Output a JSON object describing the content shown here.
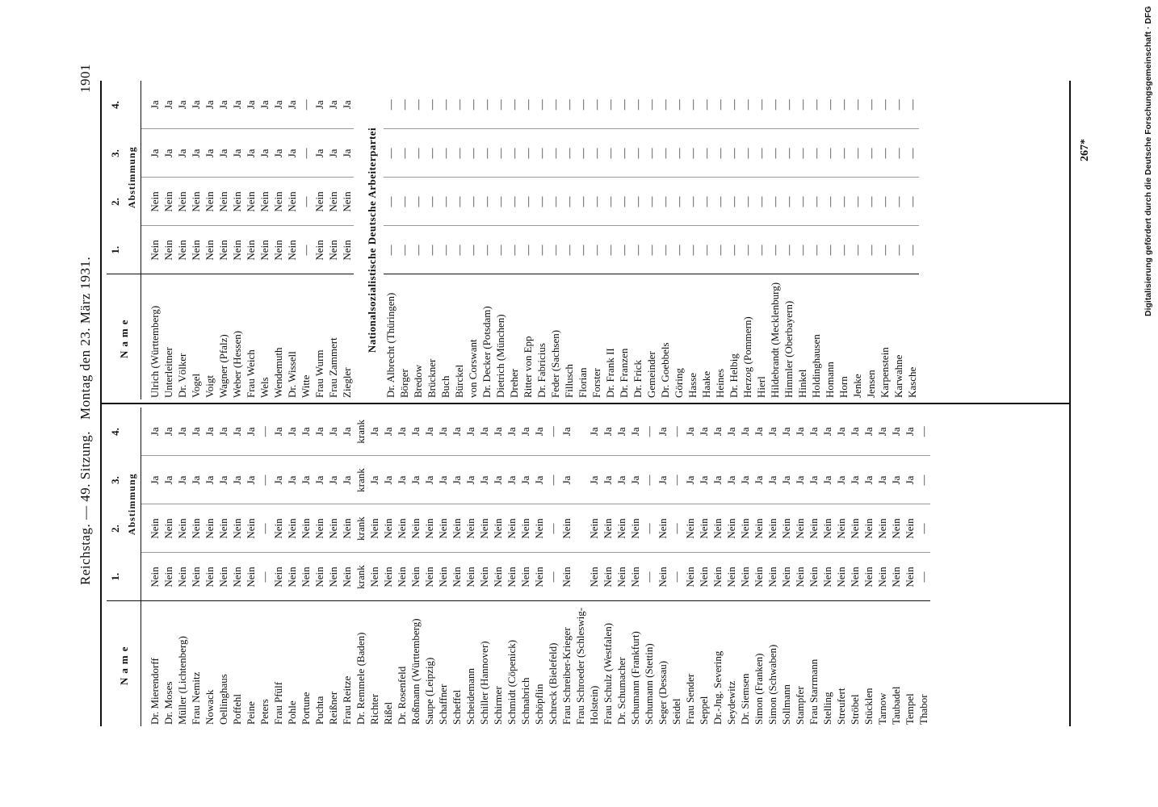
{
  "header": {
    "left": "Reichstag. — 49. Sitzung.",
    "center": "Montag den 23. März 1931.",
    "page_number": "1901"
  },
  "columns": {
    "name": "Name",
    "numbers": [
      "1.",
      "2.",
      "3.",
      "4."
    ],
    "group": "Abstimmung"
  },
  "left_table": {
    "rows": [
      [
        "Dr. Mierendorff",
        "Nein",
        "Nein",
        "Ja",
        "Ja"
      ],
      [
        "Dr. Moses",
        "Nein",
        "Nein",
        "Ja",
        "Ja"
      ],
      [
        "Müller (Lichtenberg)",
        "Nein",
        "Nein",
        "Ja",
        "Ja"
      ],
      [
        "Frau Nemitz",
        "Nein",
        "Nein",
        "Ja",
        "Ja"
      ],
      [
        "Nowack",
        "Nein",
        "Nein",
        "Ja",
        "Ja"
      ],
      [
        "Oellinghaus",
        "Nein",
        "Nein",
        "Ja",
        "Ja"
      ],
      [
        "Poffehl",
        "Nein",
        "Nein",
        "Ja",
        "Ja"
      ],
      [
        "Peine",
        "Nein",
        "Nein",
        "Ja",
        "Ja"
      ],
      [
        "Peters",
        "—",
        "—",
        "—",
        "—"
      ],
      [
        "Frau Pfülf",
        "Nein",
        "Nein",
        "Ja",
        "Ja"
      ],
      [
        "Pohle",
        "Nein",
        "Nein",
        "Ja",
        "Ja"
      ],
      [
        "Portune",
        "Nein",
        "Nein",
        "Ja",
        "Ja"
      ],
      [
        "Puchta",
        "Nein",
        "Nein",
        "Ja",
        "Ja"
      ],
      [
        "Reißner",
        "Nein",
        "Nein",
        "Ja",
        "Ja"
      ],
      [
        "Frau Reitze",
        "Nein",
        "Nein",
        "Ja",
        "Ja"
      ],
      [
        "Dr. Remmele (Baden)",
        "krank",
        "krank",
        "krank",
        "krank"
      ],
      [
        "Richter",
        "Nein",
        "Nein",
        "Ja",
        "Ja"
      ],
      [
        "Rißel",
        "Nein",
        "Nein",
        "Ja",
        "Ja"
      ],
      [
        "Dr. Rosenfeld",
        "Nein",
        "Nein",
        "Ja",
        "Ja"
      ],
      [
        "Roßmann (Württemberg)",
        "Nein",
        "Nein",
        "Ja",
        "Ja"
      ],
      [
        "Saupe (Leipzig)",
        "Nein",
        "Nein",
        "Ja",
        "Ja"
      ],
      [
        "Schaffner",
        "Nein",
        "Nein",
        "Ja",
        "Ja"
      ],
      [
        "Scheffel",
        "Nein",
        "Nein",
        "Ja",
        "Ja"
      ],
      [
        "Scheidemann",
        "Nein",
        "Nein",
        "Ja",
        "Ja"
      ],
      [
        "Schiller (Hannover)",
        "Nein",
        "Nein",
        "Ja",
        "Ja"
      ],
      [
        "Schirmer",
        "Nein",
        "Nein",
        "Ja",
        "Ja"
      ],
      [
        "Schmidt (Cöpenick)",
        "Nein",
        "Nein",
        "Ja",
        "Ja"
      ],
      [
        "Schnabrich",
        "Nein",
        "Nein",
        "Ja",
        "Ja"
      ],
      [
        "Schöpflin",
        "Nein",
        "Nein",
        "Ja",
        "Ja"
      ],
      [
        "Schreck (Bielefeld)",
        "—",
        "—",
        "—",
        "—"
      ],
      [
        "Frau Schreiber-Krieger",
        "Nein",
        "Nein",
        "Ja",
        "Ja"
      ],
      [
        "Frau Schroeder (Schleswig-Holstein)",
        "Nein",
        "Nein",
        "Ja",
        "Ja"
      ],
      [
        "Frau Schulz (Westfalen)",
        "Nein",
        "Nein",
        "Ja",
        "Ja"
      ],
      [
        "Dr. Schumacher",
        "Nein",
        "Nein",
        "Ja",
        "Ja"
      ],
      [
        "Schumann (Frankfurt)",
        "Nein",
        "Nein",
        "Ja",
        "Ja"
      ],
      [
        "Schumann (Stettin)",
        "—",
        "—",
        "—",
        "—"
      ],
      [
        "Seger (Dessau)",
        "Nein",
        "Nein",
        "Ja",
        "Ja"
      ],
      [
        "Seidel",
        "—",
        "—",
        "—",
        "—"
      ],
      [
        "Frau Sender",
        "Nein",
        "Nein",
        "Ja",
        "Ja"
      ],
      [
        "Seppel",
        "Nein",
        "Nein",
        "Ja",
        "Ja"
      ],
      [
        "Dr.-Jng. Severing",
        "Nein",
        "Nein",
        "Ja",
        "Ja"
      ],
      [
        "Seydewitz",
        "Nein",
        "Nein",
        "Ja",
        "Ja"
      ],
      [
        "Dr. Siemsen",
        "Nein",
        "Nein",
        "Ja",
        "Ja"
      ],
      [
        "Simon (Franken)",
        "Nein",
        "Nein",
        "Ja",
        "Ja"
      ],
      [
        "Simon (Schwaben)",
        "Nein",
        "Nein",
        "Ja",
        "Ja"
      ],
      [
        "Sollmann",
        "Nein",
        "Nein",
        "Ja",
        "Ja"
      ],
      [
        "Stampfer",
        "Nein",
        "Nein",
        "Ja",
        "Ja"
      ],
      [
        "Frau Starrmann",
        "Nein",
        "Nein",
        "Ja",
        "Ja"
      ],
      [
        "Stelling",
        "Nein",
        "Nein",
        "Ja",
        "Ja"
      ],
      [
        "Streufert",
        "Nein",
        "Nein",
        "Ja",
        "Ja"
      ],
      [
        "Ströbel",
        "Nein",
        "Nein",
        "Ja",
        "Ja"
      ],
      [
        "Stücklen",
        "Nein",
        "Nein",
        "Ja",
        "Ja"
      ],
      [
        "Tarnow",
        "Nein",
        "Nein",
        "Ja",
        "Ja"
      ],
      [
        "Taubadel",
        "Nein",
        "Nein",
        "Ja",
        "Ja"
      ],
      [
        "Tempel",
        "Nein",
        "Nein",
        "Ja",
        "Ja"
      ],
      [
        "Thabor",
        "—",
        "—",
        "—",
        "—"
      ]
    ]
  },
  "right_table": {
    "rows": [
      [
        "Ulrich (Württemberg)",
        "Nein",
        "Nein",
        "Ja",
        "Ja"
      ],
      [
        "Unterleitner",
        "Nein",
        "Nein",
        "Ja",
        "Ja"
      ],
      [
        "Dr. Völker",
        "Nein",
        "Nein",
        "Ja",
        "Ja"
      ],
      [
        "Vogel",
        "Nein",
        "Nein",
        "Ja",
        "Ja"
      ],
      [
        "Voigt",
        "Nein",
        "Nein",
        "Ja",
        "Ja"
      ],
      [
        "Wagner (Pfalz)",
        "Nein",
        "Nein",
        "Ja",
        "Ja"
      ],
      [
        "Weber (Hessen)",
        "Nein",
        "Nein",
        "Ja",
        "Ja"
      ],
      [
        "Frau Weich",
        "Nein",
        "Nein",
        "Ja",
        "Ja"
      ],
      [
        "Wels",
        "Nein",
        "Nein",
        "Ja",
        "Ja"
      ],
      [
        "Wendemuth",
        "Nein",
        "Nein",
        "Ja",
        "Ja"
      ],
      [
        "Dr. Wissell",
        "Nein",
        "Nein",
        "Ja",
        "Ja"
      ],
      [
        "Witte",
        "—",
        "—",
        "—",
        "—"
      ],
      [
        "Frau Wurm",
        "Nein",
        "Nein",
        "Ja",
        "Ja"
      ],
      [
        "Frau Zammert",
        "Nein",
        "Nein",
        "Ja",
        "Ja"
      ],
      [
        "Ziegler",
        "Nein",
        "Nein",
        "Ja",
        "Ja"
      ]
    ],
    "section": "Nationalsozialistische Deutsche Arbeiterpartei",
    "section_rows": [
      [
        "Dr. Albrecht (Thüringen)",
        "—",
        "—",
        "—",
        "—"
      ],
      [
        "Börger",
        "—",
        "—",
        "—",
        "—"
      ],
      [
        "Bredow",
        "—",
        "—",
        "—",
        "—"
      ],
      [
        "Brückner",
        "—",
        "—",
        "—",
        "—"
      ],
      [
        "Buch",
        "—",
        "—",
        "—",
        "—"
      ],
      [
        "Bürckel",
        "—",
        "—",
        "—",
        "—"
      ],
      [
        "von Corswant",
        "—",
        "—",
        "—",
        "—"
      ],
      [
        "Dr. Decker (Potsdam)",
        "—",
        "—",
        "—",
        "—"
      ],
      [
        "Dietrich (München)",
        "—",
        "—",
        "—",
        "—"
      ],
      [
        "Dreher",
        "—",
        "—",
        "—",
        "—"
      ],
      [
        "Ritter von Epp",
        "—",
        "—",
        "—",
        "—"
      ],
      [
        "Dr. Fabricius",
        "—",
        "—",
        "—",
        "—"
      ],
      [
        "Feder (Sachsen)",
        "—",
        "—",
        "—",
        "—"
      ],
      [
        "Fillusch",
        "—",
        "—",
        "—",
        "—"
      ],
      [
        "Florian",
        "—",
        "—",
        "—",
        "—"
      ],
      [
        "Forster",
        "—",
        "—",
        "—",
        "—"
      ],
      [
        "Dr. Frank II",
        "—",
        "—",
        "—",
        "—"
      ],
      [
        "Dr. Franzen",
        "—",
        "—",
        "—",
        "—"
      ],
      [
        "Dr. Frick",
        "—",
        "—",
        "—",
        "—"
      ],
      [
        "Gemeinder",
        "—",
        "—",
        "—",
        "—"
      ],
      [
        "Dr. Goebbels",
        "—",
        "—",
        "—",
        "—"
      ],
      [
        "Göring",
        "—",
        "—",
        "—",
        "—"
      ],
      [
        "Hasse",
        "—",
        "—",
        "—",
        "—"
      ],
      [
        "Haake",
        "—",
        "—",
        "—",
        "—"
      ],
      [
        "Heines",
        "—",
        "—",
        "—",
        "—"
      ],
      [
        "Dr. Helbig",
        "—",
        "—",
        "—",
        "—"
      ],
      [
        "Herzog (Pommern)",
        "—",
        "—",
        "—",
        "—"
      ],
      [
        "Hierl",
        "—",
        "—",
        "—",
        "—"
      ],
      [
        "Hildebrandt (Mecklenburg)",
        "—",
        "—",
        "—",
        "—"
      ],
      [
        "Himmler (Oberbayern)",
        "—",
        "—",
        "—",
        "—"
      ],
      [
        "Hinkel",
        "—",
        "—",
        "—",
        "—"
      ],
      [
        "Holdinghausen",
        "—",
        "—",
        "—",
        "—"
      ],
      [
        "Homann",
        "—",
        "—",
        "—",
        "—"
      ],
      [
        "Horn",
        "—",
        "—",
        "—",
        "—"
      ],
      [
        "Jenke",
        "—",
        "—",
        "—",
        "—"
      ],
      [
        "Jensen",
        "—",
        "—",
        "—",
        "—"
      ],
      [
        "Karpenstein",
        "—",
        "—",
        "—",
        "—"
      ],
      [
        "Karwahne",
        "—",
        "—",
        "—",
        "—"
      ],
      [
        "Kasche",
        "—",
        "—",
        "—",
        "—"
      ]
    ]
  },
  "footnote": "267*",
  "credit": "Digitalisierung gefördert durch die Deutsche Forschungsgemeinschaft · DFG"
}
